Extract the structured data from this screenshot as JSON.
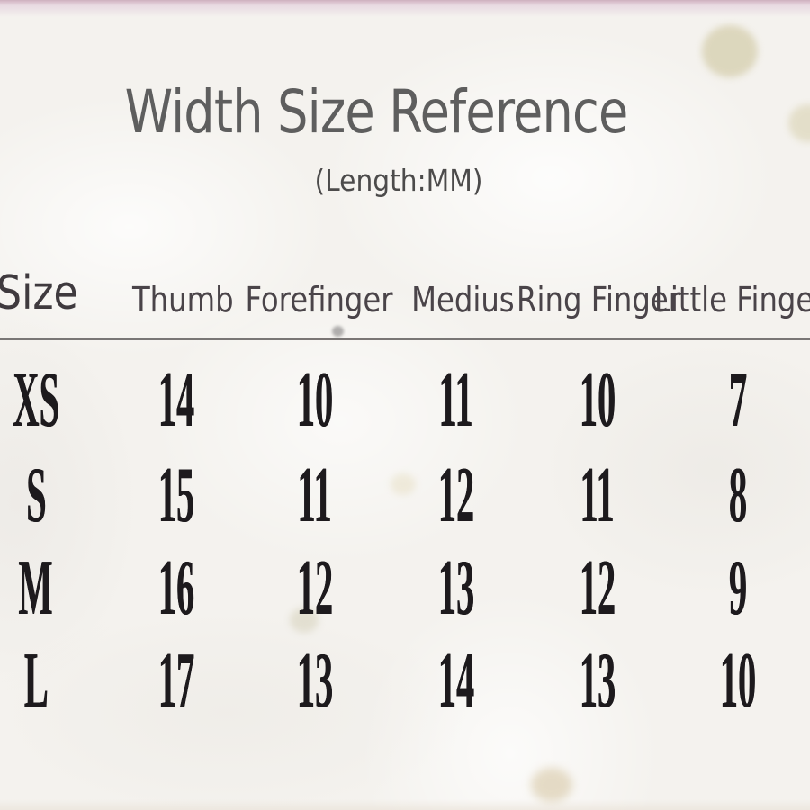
{
  "title": "Width Size Reference",
  "subtitle": "(Length:MM)",
  "colors": {
    "top_edge_pink": "#d9bfcb",
    "stain_tan": "#d5cead",
    "title_gray": "#5e5e5e",
    "header_text": "#4a4449",
    "table_text": "#1d1a1d",
    "background": "#f4f2ee"
  },
  "chart_data": {
    "type": "table",
    "title": "Width Size Reference",
    "unit_note": "(Length:MM)",
    "columns": [
      "Size",
      "Thumb",
      "Forefinger",
      "Medius",
      "Ring Finger",
      "Little Finger"
    ],
    "rows": [
      {
        "size": "XS",
        "values": [
          "14",
          "10",
          "11",
          "10",
          "7"
        ]
      },
      {
        "size": "S",
        "values": [
          "15",
          "11",
          "12",
          "11",
          "8"
        ]
      },
      {
        "size": "M",
        "values": [
          "16",
          "12",
          "13",
          "12",
          "9"
        ]
      },
      {
        "size": "L",
        "values": [
          "17",
          "13",
          "14",
          "13",
          "10"
        ]
      }
    ],
    "layout": {
      "header_divider": true,
      "grid": false,
      "rows_are_sizes": true
    }
  }
}
